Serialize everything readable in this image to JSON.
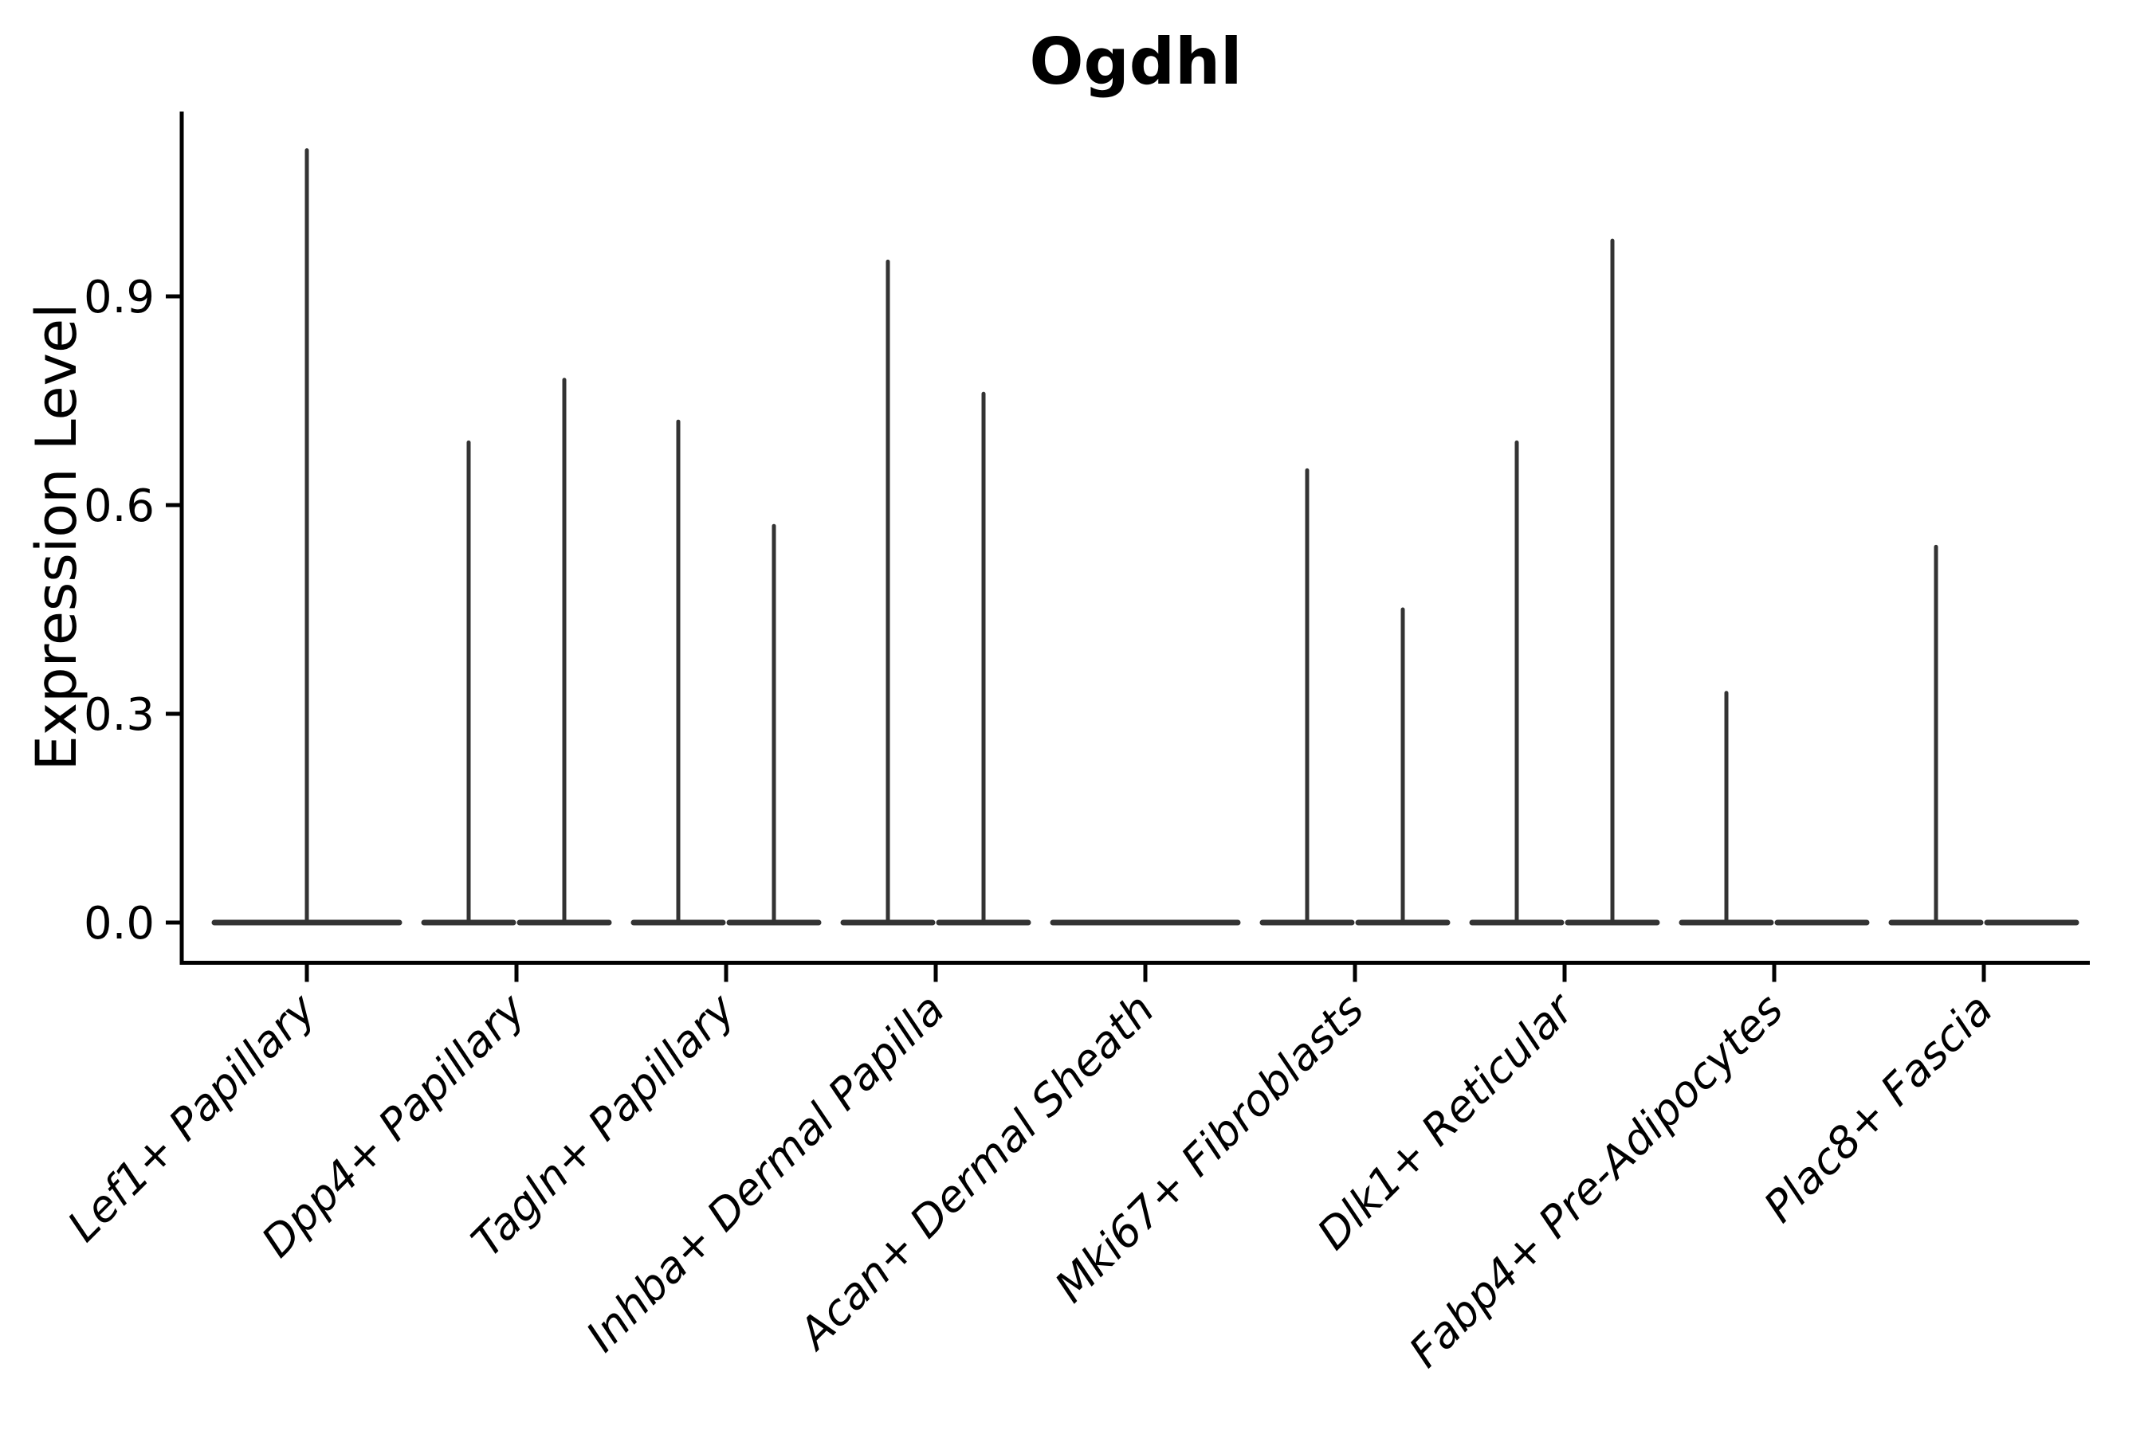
{
  "chart_data": {
    "type": "violin",
    "title": "Ogdhl",
    "xlabel": "",
    "ylabel": "Expression Level",
    "yticks": [
      {
        "value": 0.0,
        "label": "0.0"
      },
      {
        "value": 0.3,
        "label": "0.3"
      },
      {
        "value": 0.6,
        "label": "0.6"
      },
      {
        "value": 0.9,
        "label": "0.9"
      }
    ],
    "ylim": [
      -0.06,
      1.17
    ],
    "grid": false,
    "legend": null,
    "colors": {
      "violin_stroke": "#333333",
      "axis": "#000000",
      "background": "#ffffff"
    },
    "categories": [
      {
        "label": "Lef1+ Papillary",
        "violins": [
          {
            "span": "full",
            "max": 1.11
          }
        ]
      },
      {
        "label": "Dpp4+ Papillary",
        "violins": [
          {
            "span": "left",
            "max": 0.69
          },
          {
            "span": "right",
            "max": 0.78
          }
        ]
      },
      {
        "label": "Tagln+ Papillary",
        "violins": [
          {
            "span": "left",
            "max": 0.72
          },
          {
            "span": "right",
            "max": 0.57
          }
        ]
      },
      {
        "label": "Inhba+ Dermal Papilla",
        "violins": [
          {
            "span": "left",
            "max": 0.95
          },
          {
            "span": "right",
            "max": 0.76
          }
        ]
      },
      {
        "label": "Acan+ Dermal Sheath",
        "violins": [
          {
            "span": "full",
            "max": 0.0
          }
        ]
      },
      {
        "label": "Mki67+ Fibroblasts",
        "violins": [
          {
            "span": "left",
            "max": 0.65
          },
          {
            "span": "right",
            "max": 0.45
          }
        ]
      },
      {
        "label": "Dlk1+ Reticular",
        "violins": [
          {
            "span": "left",
            "max": 0.69
          },
          {
            "span": "right",
            "max": 0.98
          }
        ]
      },
      {
        "label": "Fabp4+ Pre-Adipocytes",
        "violins": [
          {
            "span": "left",
            "max": 0.33
          },
          {
            "span": "right",
            "max": 0.0
          }
        ]
      },
      {
        "label": "Plac8+ Fascia",
        "violins": [
          {
            "span": "left",
            "max": 0.54
          },
          {
            "span": "right",
            "max": 0.0
          }
        ]
      }
    ]
  }
}
